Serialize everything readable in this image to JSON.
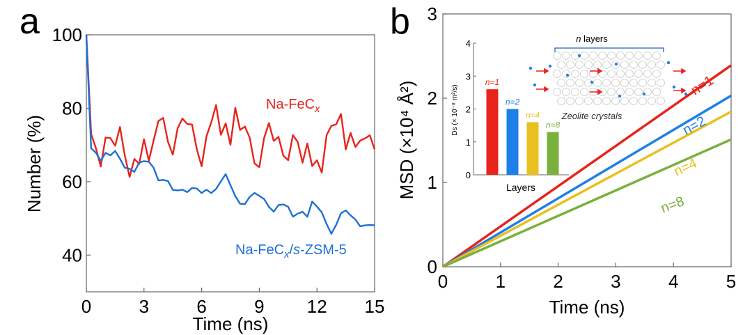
{
  "chart_data": [
    {
      "panel": "a",
      "type": "line",
      "xlabel": "Time (ns)",
      "ylabel": "Number (%)",
      "xlim": [
        0,
        15
      ],
      "ylim": [
        30,
        100
      ],
      "xticks": [
        "0",
        "3",
        "6",
        "9",
        "12",
        "15"
      ],
      "yticks": [
        "40",
        "60",
        "80",
        "100"
      ],
      "x_step": 0.25,
      "series": [
        {
          "name": "Na-FeCx",
          "label_main": "Na-FeC",
          "label_sub": "x",
          "color": "#e8231b",
          "values": [
            100,
            72,
            68,
            64,
            73,
            73,
            70,
            74,
            66,
            61,
            67,
            66,
            72,
            65,
            70,
            76,
            78,
            72,
            68,
            74,
            76,
            75,
            76,
            70,
            65,
            72,
            75,
            80,
            73,
            77,
            71,
            80,
            73,
            74,
            72,
            66,
            65,
            72,
            75,
            70,
            72,
            68,
            67,
            73,
            70,
            64,
            70,
            65,
            67,
            63,
            72,
            74,
            75,
            79,
            70,
            74,
            69,
            70,
            71,
            73,
            70
          ]
        },
        {
          "name": "Na-FeCx/s-ZSM-5",
          "label_main": "Na-FeC",
          "label_sub": "x",
          "label_tail1": "/",
          "label_italic": "s",
          "label_tail2": "-ZSM-5",
          "color": "#1f6fd6",
          "values": [
            100,
            70,
            69,
            66,
            67,
            66,
            68,
            67,
            65,
            64,
            62,
            64,
            65,
            66,
            65,
            61,
            60,
            59,
            57,
            58,
            59,
            58,
            58,
            57,
            56,
            58,
            58,
            59,
            60,
            61,
            58,
            56,
            55,
            55,
            56,
            56,
            55,
            55,
            54,
            53,
            54,
            53,
            52,
            50,
            52,
            53,
            51,
            54,
            52,
            51,
            49,
            47,
            49,
            51,
            51,
            50,
            50,
            49,
            49,
            48,
            47
          ]
        }
      ]
    },
    {
      "panel": "b",
      "type": "line",
      "xlabel": "Time (ns)",
      "ylabel": "MSD (×10⁴ Å²)",
      "xlim": [
        0,
        5
      ],
      "ylim": [
        0,
        3
      ],
      "xticks": [
        "0",
        "1",
        "2",
        "3",
        "4",
        "5"
      ],
      "yticks": [
        "0",
        "1",
        "2",
        "3"
      ],
      "series": [
        {
          "name": "n=1",
          "color": "#e8231b",
          "x": [
            0,
            5
          ],
          "y": [
            0,
            2.39
          ]
        },
        {
          "name": "n=2",
          "color": "#1f7fe8",
          "x": [
            0,
            5
          ],
          "y": [
            0,
            2.03
          ]
        },
        {
          "name": "n=4",
          "color": "#e8c020",
          "x": [
            0,
            5
          ],
          "y": [
            0,
            1.84
          ]
        },
        {
          "name": "n=8",
          "color": "#7ab03c",
          "x": [
            0,
            5
          ],
          "y": [
            0,
            1.51
          ]
        }
      ],
      "inset": {
        "type": "bar",
        "xlabel": "Layers",
        "ylabel": "Ds (× 10⁻⁸ m²/s)",
        "ylim": [
          0,
          4
        ],
        "yticks": [
          "0",
          "1",
          "2",
          "3",
          "4"
        ],
        "categories": [
          "n=1",
          "n=2",
          "n=4",
          "n=8"
        ],
        "values": [
          2.6,
          2.0,
          1.6,
          1.3
        ],
        "colors": [
          "#e8231b",
          "#1f7fe8",
          "#e8c020",
          "#7ab03c"
        ]
      },
      "schematic": {
        "top_label_italic": "n",
        "top_label": " layers",
        "bottom_label": "Zeolite crystals"
      }
    }
  ],
  "panel_labels": [
    "a",
    "b"
  ]
}
